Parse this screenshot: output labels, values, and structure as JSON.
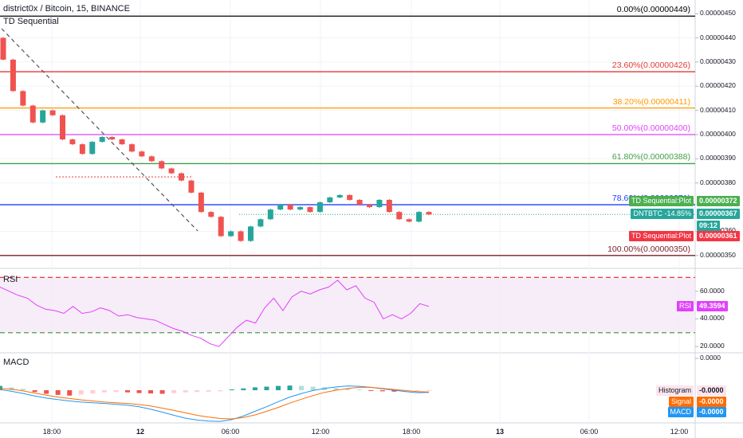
{
  "header": {
    "symbol_title": "district0x / Bitcoin, 15, BINANCE",
    "indicator_td": "TD Sequential",
    "indicator_rsi": "RSI",
    "indicator_macd": "MACD"
  },
  "colors": {
    "up": "#26a69a",
    "down": "#ef5350",
    "rsi_line": "#e040fb",
    "macd_line": "#2196f3",
    "signal_line": "#ff6d00",
    "fib_0": "#000000",
    "fib_236": "#e53935",
    "fib_382": "#ff9800",
    "fib_50": "#e040fb",
    "fib_618": "#43a047",
    "fib_786": "#1e40ff",
    "fib_100": "#7b1f2a"
  },
  "chart_data": [
    {
      "type": "candlestick",
      "title": "district0x / Bitcoin, 15, BINANCE",
      "y_ticks": [
        "0.00000450",
        "0.00000440",
        "0.00000430",
        "0.00000420",
        "0.00000410",
        "0.00000400",
        "0.00000390",
        "0.00000380",
        "0.00000360",
        "0.00000350"
      ],
      "ylim": [
        3.45e-06,
        4.55e-06
      ],
      "x_ticks": [
        "18:00",
        "12",
        "06:00",
        "12:00",
        "18:00",
        "13",
        "06:00",
        "12:00"
      ],
      "fib_levels": [
        {
          "label": "0.00%(0.00000449)",
          "value": 4.49e-06,
          "color_key": "fib_0"
        },
        {
          "label": "23.60%(0.00000426)",
          "value": 4.26e-06,
          "color_key": "fib_236"
        },
        {
          "label": "38.20%(0.00000411)",
          "value": 4.11e-06,
          "color_key": "fib_382"
        },
        {
          "label": "50.00%(0.00000400)",
          "value": 4e-06,
          "color_key": "fib_50"
        },
        {
          "label": "61.80%(0.00000388)",
          "value": 3.88e-06,
          "color_key": "fib_618"
        },
        {
          "label": "78.60%(0.00000371)",
          "value": 3.71e-06,
          "color_key": "fib_786"
        },
        {
          "label": "100.00%(0.00000350)",
          "value": 3.5e-06,
          "color_key": "fib_100"
        }
      ],
      "price_badges": [
        {
          "label": "TD Sequential:Plot",
          "value": "0.00000372",
          "bg": "#4caf50"
        },
        {
          "label": "DNTBTC -14.85%",
          "value": "0.00000367",
          "bg": "#26a69a"
        },
        {
          "label": "",
          "value": "09:12",
          "bg": "#26a69a"
        },
        {
          "label": "TD Sequential:Plot",
          "value": "0.00000361",
          "bg": "#f23645"
        }
      ],
      "close_series": [
        4.31e-06,
        4.18e-06,
        4.12e-06,
        4.05e-06,
        4.1e-06,
        4.08e-06,
        3.98e-06,
        3.96e-06,
        3.92e-06,
        3.97e-06,
        3.99e-06,
        3.98e-06,
        3.96e-06,
        3.93e-06,
        3.91e-06,
        3.89e-06,
        3.86e-06,
        3.84e-06,
        3.81e-06,
        3.76e-06,
        3.68e-06,
        3.66e-06,
        3.58e-06,
        3.6e-06,
        3.56e-06,
        3.62e-06,
        3.65e-06,
        3.69e-06,
        3.71e-06,
        3.69e-06,
        3.7e-06,
        3.68e-06,
        3.72e-06,
        3.74e-06,
        3.75e-06,
        3.73e-06,
        3.71e-06,
        3.7e-06,
        3.73e-06,
        3.68e-06,
        3.65e-06,
        3.64e-06,
        3.68e-06,
        3.67e-06
      ]
    },
    {
      "type": "line",
      "title": "RSI",
      "y_ticks": [
        "60.0000",
        "40.0000",
        "20.0000"
      ],
      "ylim": [
        16,
        76
      ],
      "overbought": 70,
      "oversold": 30,
      "last_value_label": "RSI",
      "last_value": "49.3594",
      "values": [
        63,
        60,
        57,
        55,
        50,
        47,
        46,
        44,
        49,
        44,
        45,
        48,
        46,
        42,
        43,
        41,
        40,
        39,
        36,
        33,
        31,
        28,
        26,
        22,
        20,
        27,
        34,
        39,
        37,
        48,
        55,
        46,
        56,
        60,
        58,
        61,
        63,
        68,
        61,
        64,
        55,
        52,
        40,
        43,
        40,
        44,
        51,
        49
      ]
    },
    {
      "type": "line",
      "title": "MACD",
      "y_ticks": [
        "0.0000"
      ],
      "series": [
        {
          "name": "Histogram",
          "value_label": "-0.0000"
        },
        {
          "name": "Signal",
          "value_label": "-0.0000"
        },
        {
          "name": "MACD",
          "value_label": "-0.0000"
        }
      ],
      "macd": [
        0.2,
        -0.3,
        -0.9,
        -1.6,
        -2.2,
        -2.6,
        -3.0,
        -3.3,
        -3.5,
        -3.7,
        -3.9,
        -4.2,
        -4.6,
        -5.3,
        -6.1,
        -7.0,
        -7.8,
        -8.3,
        -8.6,
        -8.7,
        -8.2,
        -7.2,
        -5.9,
        -4.6,
        -3.2,
        -1.9,
        -0.9,
        -0.1,
        0.5,
        0.9,
        1.2,
        1.1,
        0.8,
        0.4,
        0.0,
        -0.4,
        -0.7,
        -0.6
      ],
      "signal": [
        0.5,
        0.3,
        -0.2,
        -0.8,
        -1.4,
        -1.9,
        -2.3,
        -2.7,
        -3.0,
        -3.3,
        -3.5,
        -3.7,
        -4.0,
        -4.4,
        -5.0,
        -5.6,
        -6.3,
        -7.0,
        -7.5,
        -7.9,
        -8.0,
        -7.6,
        -6.9,
        -5.9,
        -4.8,
        -3.6,
        -2.5,
        -1.5,
        -0.6,
        0.0,
        0.5,
        0.8,
        0.8,
        0.5,
        0.2,
        -0.1,
        -0.4,
        -0.5
      ],
      "histogram": [
        1.2,
        0.8,
        0.4,
        -0.5,
        -1.0,
        -1.3,
        -1.5,
        -1.2,
        -0.9,
        -0.6,
        -0.5,
        -0.6,
        -0.8,
        -0.9,
        -1.0,
        -0.8,
        -0.6,
        -0.5,
        -0.4,
        -0.3,
        0.2,
        0.5,
        0.8,
        1.0,
        1.2,
        1.3,
        1.2,
        1.0,
        0.8,
        0.6,
        0.4,
        0.2,
        -0.1,
        -0.3,
        -0.4,
        -0.3,
        -0.2,
        -0.1
      ]
    }
  ]
}
